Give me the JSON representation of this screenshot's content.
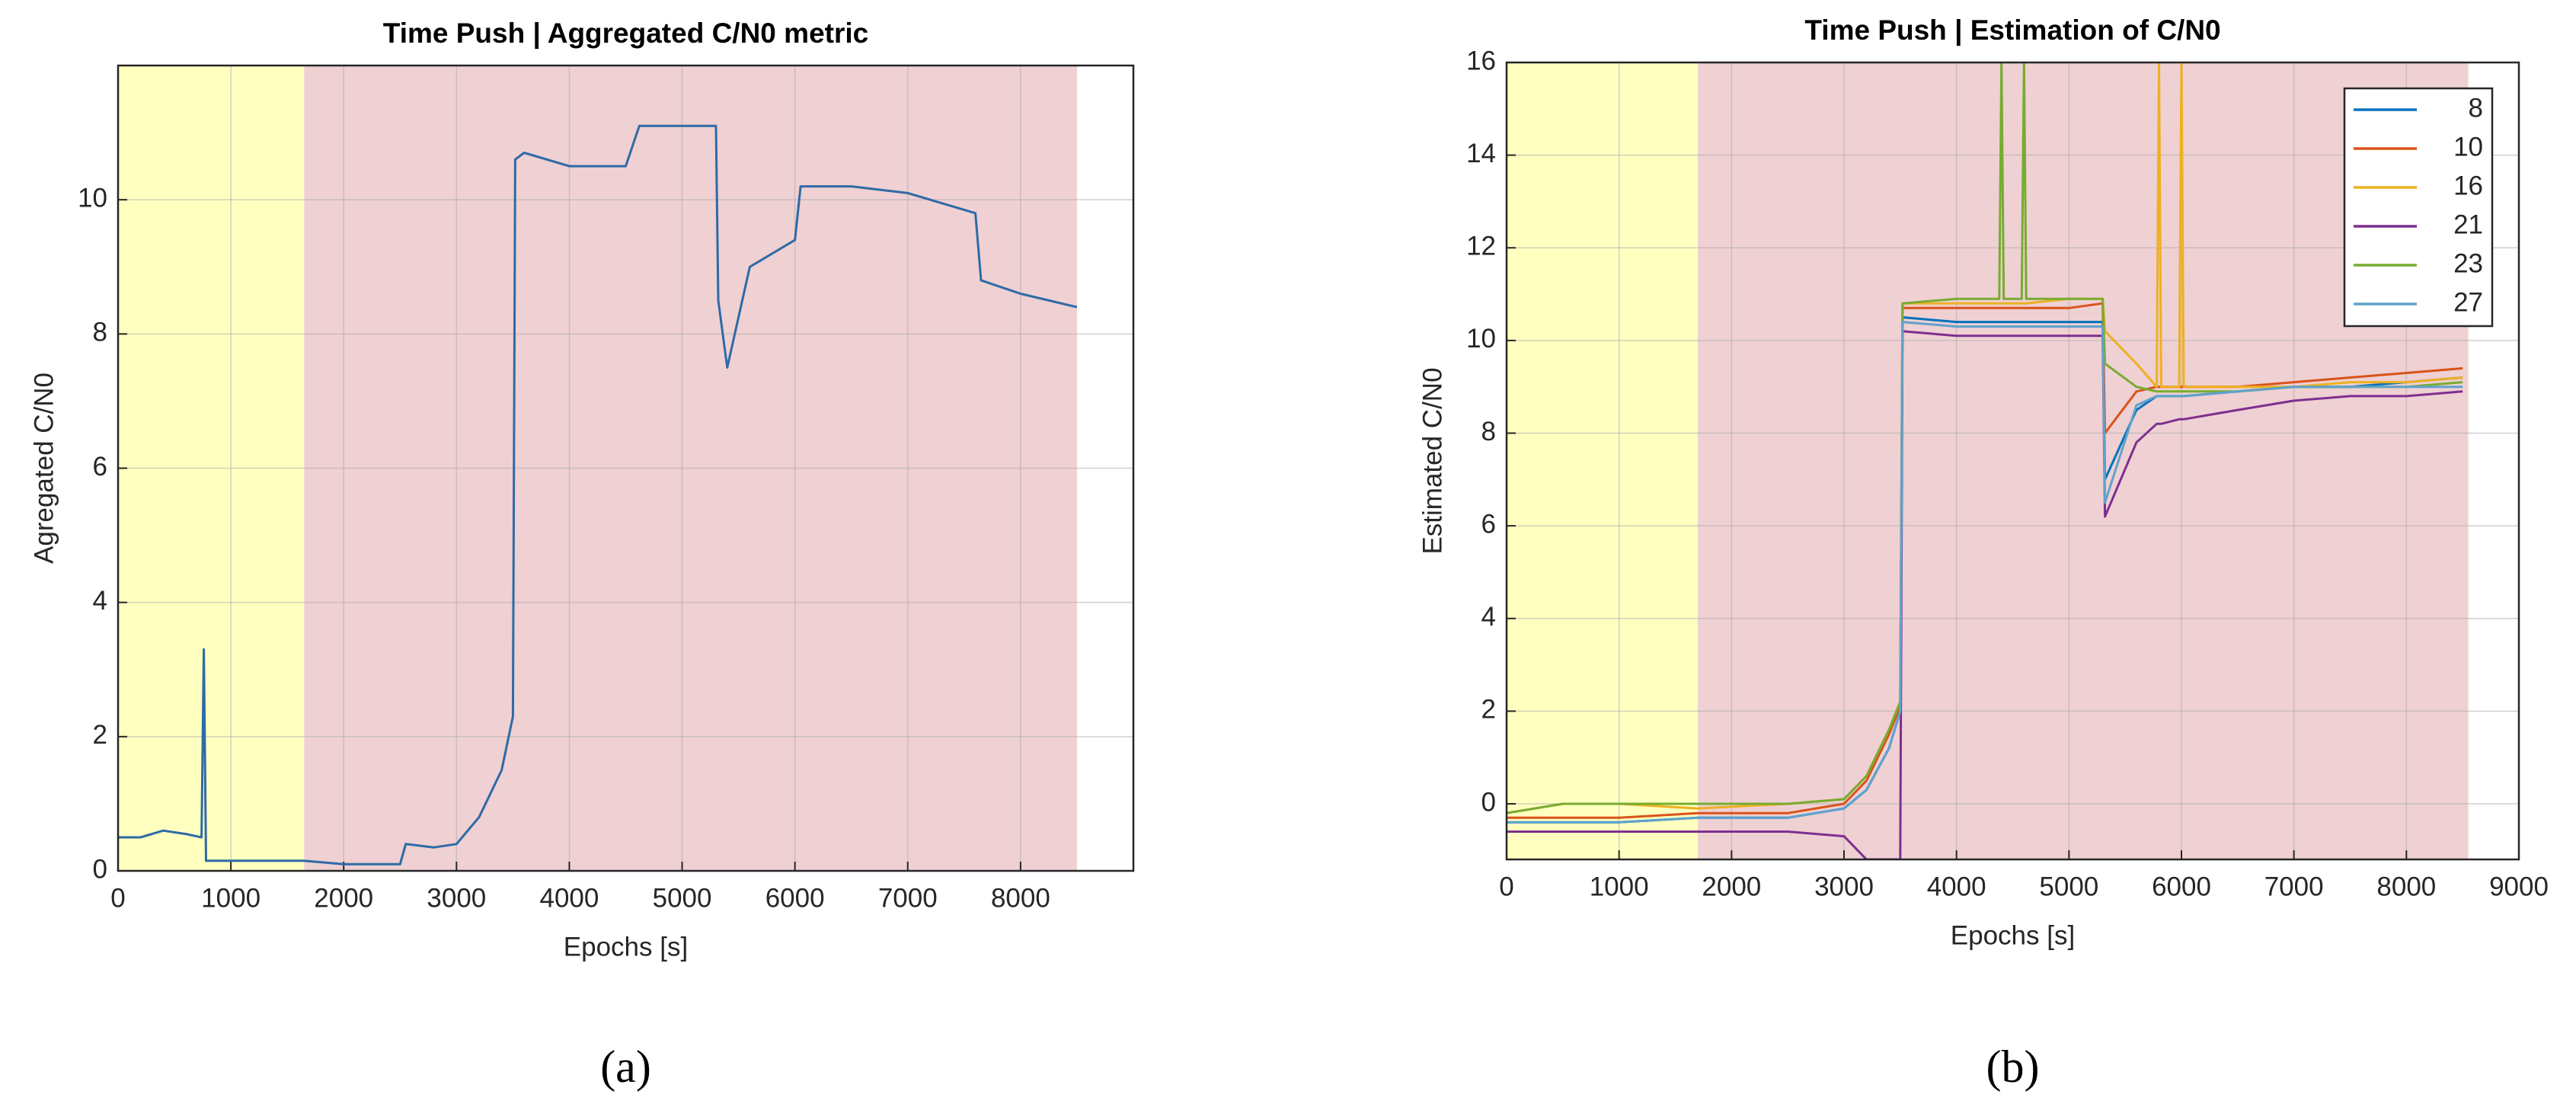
{
  "chart_data": [
    {
      "type": "line",
      "title": "Time Push | Aggregated C/N0 metric",
      "xlabel": "Epochs [s]",
      "ylabel": "Agregated C/N0",
      "caption": "(a)",
      "xlim": [
        0,
        9000
      ],
      "ylim": [
        0,
        12
      ],
      "xticks": [
        0,
        1000,
        2000,
        3000,
        4000,
        5000,
        6000,
        7000,
        8000
      ],
      "yticks": [
        0,
        2,
        4,
        6,
        8,
        10
      ],
      "grid": true,
      "bands": [
        {
          "start": 0,
          "end": 1650,
          "color": "#ffffc0"
        },
        {
          "start": 1650,
          "end": 8500,
          "color": "#efd0d3"
        }
      ],
      "x": [
        0,
        200,
        400,
        600,
        740,
        760,
        780,
        1000,
        1300,
        1650,
        2000,
        2500,
        2550,
        2800,
        3000,
        3200,
        3400,
        3500,
        3520,
        3600,
        4000,
        4500,
        4620,
        5000,
        5300,
        5320,
        5400,
        5600,
        5900,
        6000,
        6050,
        6500,
        7000,
        7600,
        7650,
        8000,
        8500
      ],
      "series": [
        {
          "color": "#2e6aa6",
          "values": [
            0.5,
            0.5,
            0.6,
            0.55,
            0.5,
            3.3,
            0.15,
            0.15,
            0.15,
            0.15,
            0.1,
            0.1,
            0.4,
            0.35,
            0.4,
            0.8,
            1.5,
            2.3,
            10.6,
            10.7,
            10.5,
            10.5,
            11.1,
            11.1,
            11.1,
            8.5,
            7.5,
            9.0,
            9.3,
            9.4,
            10.2,
            10.2,
            10.1,
            9.8,
            8.8,
            8.6,
            8.4
          ]
        }
      ]
    },
    {
      "type": "line",
      "title": "Time Push | Estimation of C/N0",
      "xlabel": "Epochs [s]",
      "ylabel": "Estimated C/N0",
      "caption": "(b)",
      "xlim": [
        0,
        9000
      ],
      "ylim": [
        -1.2,
        16
      ],
      "xticks": [
        0,
        1000,
        2000,
        3000,
        4000,
        5000,
        6000,
        7000,
        8000,
        9000
      ],
      "yticks": [
        0,
        2,
        4,
        6,
        8,
        10,
        12,
        14,
        16
      ],
      "grid": true,
      "legend": "upper right",
      "bands": [
        {
          "start": 0,
          "end": 1700,
          "color": "#ffffc0"
        },
        {
          "start": 1700,
          "end": 8550,
          "color": "#efd0d3"
        }
      ],
      "x": [
        0,
        500,
        1000,
        1700,
        2500,
        3000,
        3200,
        3400,
        3500,
        3520,
        4000,
        4380,
        4400,
        4420,
        4580,
        4600,
        4620,
        5000,
        5300,
        5320,
        5600,
        5780,
        5800,
        5820,
        5980,
        6000,
        6020,
        6500,
        7000,
        7500,
        8000,
        8500
      ],
      "series": [
        {
          "name": "8",
          "color": "#0072bd",
          "values": [
            -0.4,
            -0.4,
            -0.4,
            -0.3,
            -0.3,
            -0.1,
            0.3,
            1.2,
            2.0,
            10.5,
            10.4,
            10.4,
            10.4,
            10.4,
            10.4,
            10.4,
            10.4,
            10.4,
            10.4,
            7,
            8.5,
            8.8,
            8.8,
            8.8,
            8.8,
            8.8,
            8.8,
            8.9,
            9.0,
            9.0,
            9.1,
            9.2
          ]
        },
        {
          "name": "10",
          "color": "#d95319",
          "values": [
            -0.3,
            -0.3,
            -0.3,
            -0.2,
            -0.2,
            0,
            0.5,
            1.5,
            2.1,
            10.7,
            10.7,
            10.7,
            10.7,
            10.7,
            10.7,
            10.7,
            10.7,
            10.7,
            10.8,
            8,
            8.9,
            9.0,
            9.0,
            9.0,
            9.0,
            9.0,
            9.0,
            9.0,
            9.1,
            9.2,
            9.3,
            9.4
          ]
        },
        {
          "name": "16",
          "color": "#edb120",
          "values": [
            -0.2,
            0,
            0,
            -0.1,
            0,
            0.1,
            0.6,
            1.6,
            2.2,
            10.8,
            10.8,
            10.8,
            10.8,
            10.8,
            10.8,
            10.8,
            10.8,
            10.9,
            10.9,
            10.2,
            9.5,
            9.0,
            16,
            9.0,
            9.0,
            16,
            9.0,
            9.0,
            9.0,
            9.1,
            9.1,
            9.2
          ]
        },
        {
          "name": "21",
          "color": "#7e2f8e",
          "values": [
            -0.6,
            -0.6,
            -0.6,
            -0.6,
            -0.6,
            -0.7,
            -1.2,
            -1.2,
            -1.2,
            10.2,
            10.1,
            10.1,
            10.1,
            10.1,
            10.1,
            10.1,
            10.1,
            10.1,
            10.1,
            6.2,
            7.8,
            8.2,
            8.2,
            8.2,
            8.3,
            8.3,
            8.3,
            8.5,
            8.7,
            8.8,
            8.8,
            8.9
          ]
        },
        {
          "name": "23",
          "color": "#77ac30",
          "values": [
            -0.2,
            0,
            0,
            0,
            0,
            0.1,
            0.6,
            1.6,
            2.2,
            10.8,
            10.9,
            10.9,
            16,
            10.9,
            10.9,
            16,
            10.9,
            10.9,
            10.9,
            9.5,
            9.0,
            8.9,
            8.9,
            8.9,
            8.9,
            8.9,
            8.9,
            8.9,
            9.0,
            9.0,
            9.0,
            9.1
          ]
        },
        {
          "name": "27",
          "color": "#5fa2cc",
          "values": [
            -0.4,
            -0.4,
            -0.4,
            -0.3,
            -0.3,
            -0.1,
            0.3,
            1.2,
            2.0,
            10.4,
            10.3,
            10.3,
            10.3,
            10.3,
            10.3,
            10.3,
            10.3,
            10.3,
            10.3,
            6.5,
            8.6,
            8.8,
            8.8,
            8.8,
            8.8,
            8.8,
            8.8,
            8.9,
            9.0,
            9.0,
            9.0,
            9.0
          ]
        }
      ]
    }
  ]
}
